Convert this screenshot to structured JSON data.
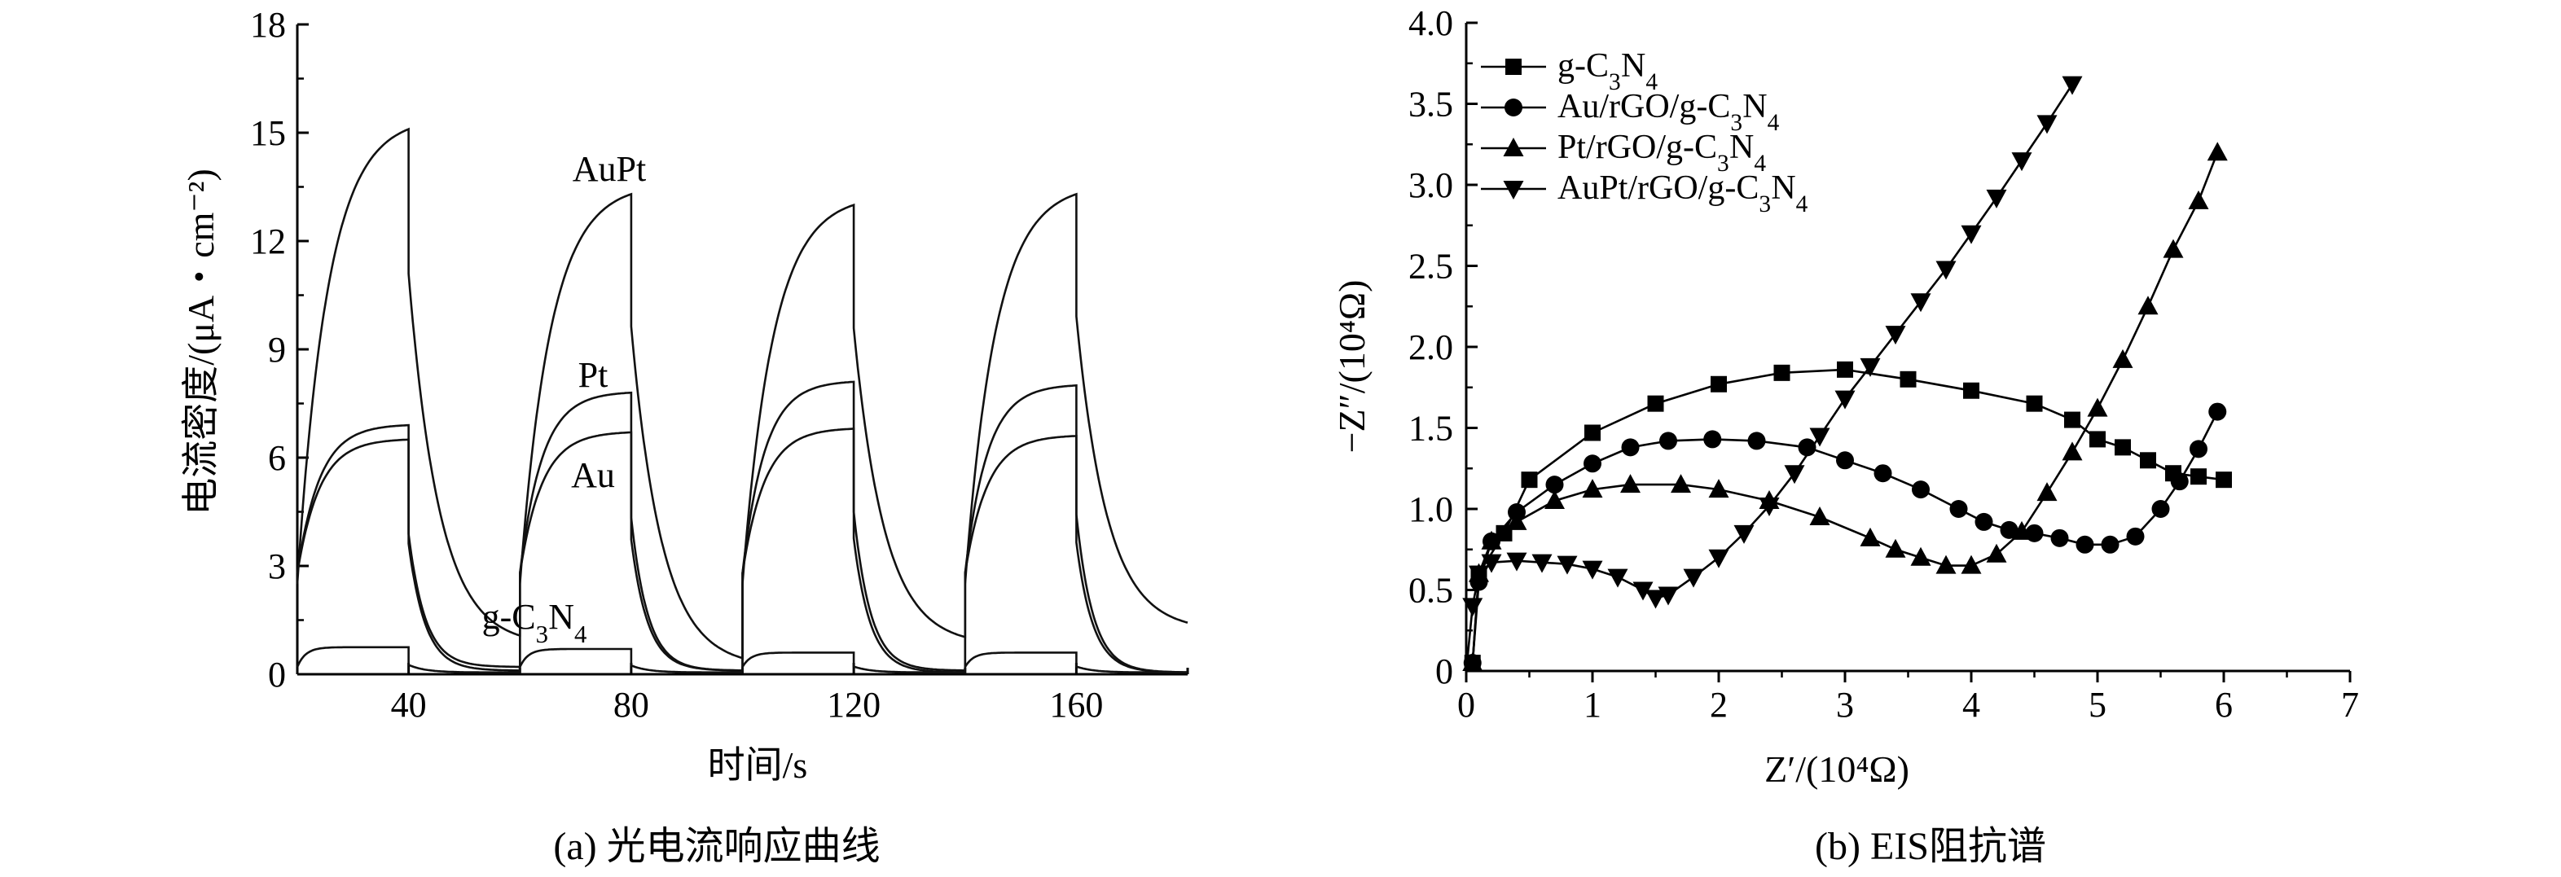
{
  "captions": {
    "a": "(a) 光电流响应曲线",
    "b": "(b) EIS阻抗谱"
  },
  "chart_data": [
    {
      "type": "line",
      "title": "",
      "xlabel": "时间/s",
      "ylabel": "电流密度/(μA・cm⁻²)",
      "xlim": [
        20,
        180
      ],
      "ylim": [
        0,
        18
      ],
      "x_ticks": [
        "40",
        "80",
        "120",
        "160"
      ],
      "y_ticks": [
        "0",
        "3",
        "6",
        "9",
        "12",
        "15",
        "18"
      ],
      "light_on_periods": [
        [
          20,
          40
        ],
        [
          60,
          80
        ],
        [
          100,
          120
        ],
        [
          140,
          160
        ]
      ],
      "curve_labels": [
        "AuPt",
        "Pt",
        "Au",
        "g-C3N4"
      ],
      "series": [
        {
          "name": "AuPt",
          "on_peak": [
            15.1,
            13.3,
            13.0,
            13.3
          ],
          "off_end": [
            0.8,
            0.2,
            0.8,
            1.2
          ]
        },
        {
          "name": "Pt",
          "on_peak": [
            6.9,
            7.8,
            8.1,
            8.0
          ],
          "off_end": [
            0.2,
            0.1,
            0.1,
            0.05
          ]
        },
        {
          "name": "Au",
          "on_peak": [
            6.5,
            6.7,
            6.8,
            6.6
          ],
          "off_end": [
            0.1,
            0.1,
            0.05,
            0.05
          ]
        },
        {
          "name": "g-C3N4",
          "on_peak": [
            0.75,
            0.7,
            0.6,
            0.6
          ],
          "off_end": [
            0.05,
            0.05,
            0.05,
            0.05
          ]
        }
      ]
    },
    {
      "type": "scatter",
      "title": "",
      "xlabel": "Z′/(10⁴Ω)",
      "ylabel": "−Z″/(10⁴Ω)",
      "xlim": [
        0,
        7
      ],
      "ylim": [
        0,
        4.0
      ],
      "x_ticks": [
        "0",
        "1",
        "2",
        "3",
        "4",
        "5",
        "6",
        "7"
      ],
      "y_ticks": [
        "0",
        "0.5",
        "1.0",
        "1.5",
        "2.0",
        "2.5",
        "3.0",
        "3.5",
        "4.0"
      ],
      "legend_position": "top-left",
      "series": [
        {
          "name": "g-C3N4",
          "marker": "square",
          "x": [
            0.05,
            0.1,
            0.3,
            0.5,
            1.0,
            1.5,
            2.0,
            2.5,
            3.0,
            3.5,
            4.0,
            4.5,
            4.8,
            5.0,
            5.2,
            5.4,
            5.6,
            5.8,
            6.0
          ],
          "y": [
            0.05,
            0.6,
            0.85,
            1.18,
            1.47,
            1.65,
            1.77,
            1.84,
            1.86,
            1.8,
            1.73,
            1.65,
            1.55,
            1.43,
            1.38,
            1.3,
            1.22,
            1.2,
            1.18
          ]
        },
        {
          "name": "Au/rGO/g-C3N4",
          "marker": "circle",
          "x": [
            0.05,
            0.1,
            0.2,
            0.4,
            0.7,
            1.0,
            1.3,
            1.6,
            1.95,
            2.3,
            2.7,
            3.0,
            3.3,
            3.6,
            3.9,
            4.1,
            4.3,
            4.5,
            4.7,
            4.9,
            5.1,
            5.3,
            5.5,
            5.65,
            5.8,
            5.95
          ],
          "y": [
            0.05,
            0.55,
            0.8,
            0.98,
            1.15,
            1.28,
            1.38,
            1.42,
            1.43,
            1.42,
            1.38,
            1.3,
            1.22,
            1.12,
            1.0,
            0.92,
            0.87,
            0.85,
            0.82,
            0.78,
            0.78,
            0.83,
            1.0,
            1.17,
            1.37,
            1.6
          ]
        },
        {
          "name": "Pt/rGO/g-C3N4",
          "marker": "triangle-up",
          "x": [
            0.05,
            0.1,
            0.2,
            0.4,
            0.7,
            1.0,
            1.3,
            1.7,
            2.0,
            2.4,
            2.8,
            3.2,
            3.4,
            3.6,
            3.8,
            4.0,
            4.2,
            4.4,
            4.6,
            4.8,
            5.0,
            5.2,
            5.4,
            5.6,
            5.8,
            5.95
          ],
          "y": [
            0.05,
            0.6,
            0.8,
            0.92,
            1.05,
            1.12,
            1.15,
            1.15,
            1.12,
            1.05,
            0.95,
            0.82,
            0.75,
            0.7,
            0.65,
            0.65,
            0.72,
            0.86,
            1.1,
            1.35,
            1.62,
            1.92,
            2.25,
            2.6,
            2.9,
            3.2
          ]
        },
        {
          "name": "AuPt/rGO/g-C3N4",
          "marker": "triangle-down",
          "x": [
            0.05,
            0.1,
            0.2,
            0.4,
            0.6,
            0.8,
            1.0,
            1.2,
            1.4,
            1.5,
            1.6,
            1.8,
            2.0,
            2.2,
            2.4,
            2.6,
            2.8,
            3.0,
            3.2,
            3.4,
            3.6,
            3.8,
            4.0,
            4.2,
            4.4,
            4.6,
            4.8
          ],
          "y": [
            0.4,
            0.6,
            0.67,
            0.68,
            0.67,
            0.66,
            0.63,
            0.58,
            0.5,
            0.45,
            0.47,
            0.58,
            0.7,
            0.85,
            1.02,
            1.22,
            1.45,
            1.68,
            1.88,
            2.08,
            2.28,
            2.48,
            2.7,
            2.92,
            3.15,
            3.38,
            3.62
          ]
        }
      ]
    }
  ]
}
